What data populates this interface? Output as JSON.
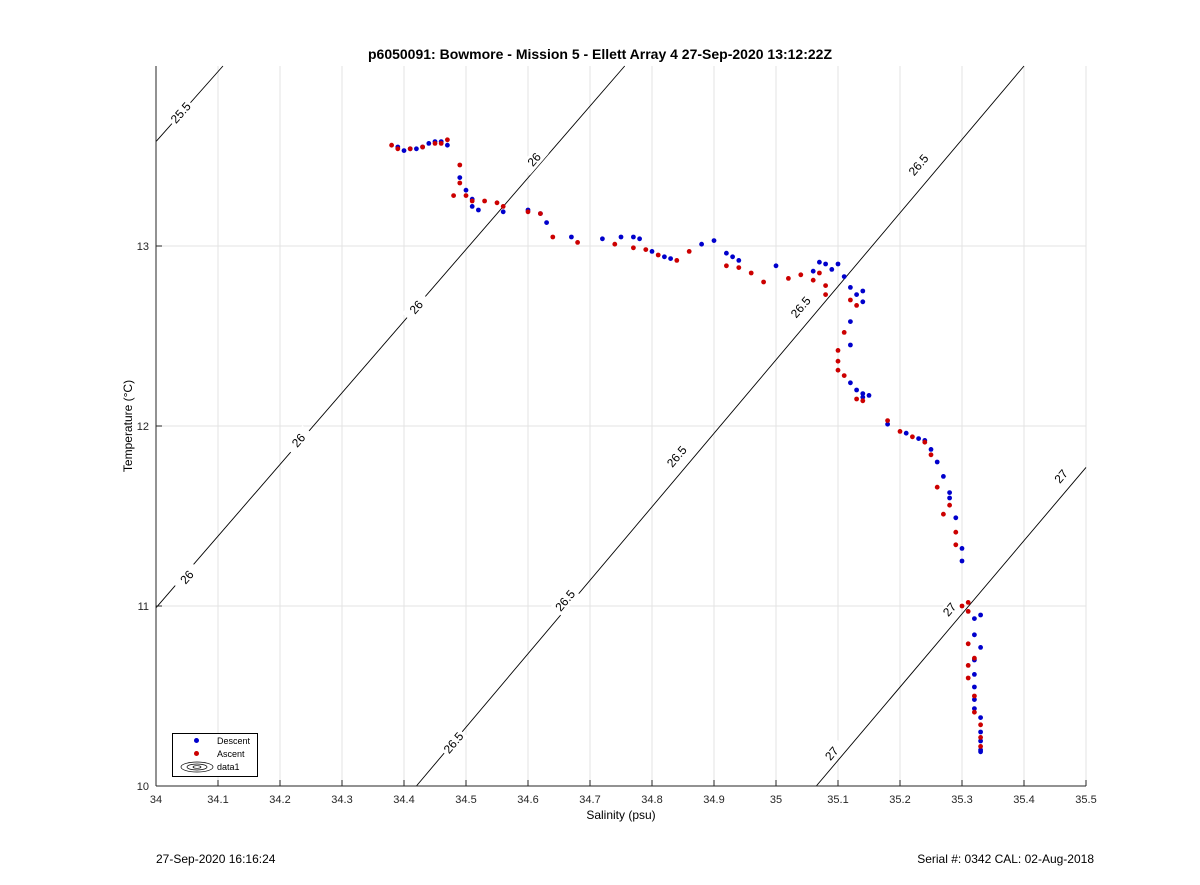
{
  "title": "p6050091: Bowmore - Mission 5 - Ellett Array 4 27-Sep-2020 13:12:22Z",
  "footer": {
    "timestamp": "27-Sep-2020 16:16:24",
    "serial": "Serial #: 0342  CAL: 02-Aug-2018"
  },
  "chart_data": {
    "type": "scatter",
    "title": "p6050091: Bowmore - Mission 5 - Ellett Array 4 27-Sep-2020 13:12:22Z",
    "xlabel": "Salinity (psu)",
    "ylabel": "Temperature (°C)",
    "xlim": [
      34,
      35.5
    ],
    "ylim": [
      10,
      14
    ],
    "xticks": [
      "34",
      "34.1",
      "34.2",
      "34.3",
      "34.4",
      "34.5",
      "34.6",
      "34.7",
      "34.8",
      "34.9",
      "35",
      "35.1",
      "35.2",
      "35.3",
      "35.4",
      "35.5"
    ],
    "yticks": [
      "10",
      "11",
      "12",
      "13"
    ],
    "grid": true,
    "legend_position": "bottom-left",
    "legend": [
      "Descent",
      "Ascent",
      "data1"
    ],
    "colors": {
      "Descent": "#0000cc",
      "Ascent": "#cc0000",
      "contour": "#000000"
    },
    "contours": [
      {
        "label": "25.5",
        "points": [
          [
            34.0,
            13.58
          ],
          [
            34.108,
            14.0
          ]
        ],
        "labels": [
          [
            34.04,
            13.74
          ]
        ]
      },
      {
        "label": "26",
        "points": [
          [
            34.0,
            10.99
          ],
          [
            34.756,
            14.0
          ]
        ],
        "labels": [
          [
            34.05,
            11.16
          ],
          [
            34.23,
            11.92
          ],
          [
            34.42,
            12.66
          ],
          [
            34.61,
            13.48
          ]
        ]
      },
      {
        "label": "26.5",
        "points": [
          [
            34.42,
            10.0
          ],
          [
            35.4,
            14.0
          ]
        ],
        "labels": [
          [
            34.48,
            10.24
          ],
          [
            34.66,
            11.03
          ],
          [
            34.84,
            11.83
          ],
          [
            35.04,
            12.66
          ],
          [
            35.23,
            13.45
          ]
        ]
      },
      {
        "label": "27",
        "points": [
          [
            35.065,
            10.0
          ],
          [
            35.5,
            11.77
          ]
        ],
        "labels": [
          [
            35.09,
            10.18
          ],
          [
            35.28,
            10.98
          ],
          [
            35.46,
            11.72
          ]
        ]
      }
    ],
    "series": [
      {
        "name": "Descent",
        "points": [
          [
            34.39,
            13.55
          ],
          [
            34.4,
            13.53
          ],
          [
            34.41,
            13.54
          ],
          [
            34.42,
            13.54
          ],
          [
            34.43,
            13.55
          ],
          [
            34.44,
            13.57
          ],
          [
            34.45,
            13.58
          ],
          [
            34.46,
            13.58
          ],
          [
            34.47,
            13.56
          ],
          [
            34.49,
            13.38
          ],
          [
            34.5,
            13.31
          ],
          [
            34.51,
            13.26
          ],
          [
            34.51,
            13.22
          ],
          [
            34.52,
            13.2
          ],
          [
            34.56,
            13.19
          ],
          [
            34.6,
            13.2
          ],
          [
            34.62,
            13.18
          ],
          [
            34.63,
            13.13
          ],
          [
            34.67,
            13.05
          ],
          [
            34.72,
            13.04
          ],
          [
            34.75,
            13.05
          ],
          [
            34.77,
            13.05
          ],
          [
            34.78,
            13.04
          ],
          [
            34.8,
            12.97
          ],
          [
            34.82,
            12.94
          ],
          [
            34.83,
            12.93
          ],
          [
            34.88,
            13.01
          ],
          [
            34.9,
            13.03
          ],
          [
            34.92,
            12.96
          ],
          [
            34.93,
            12.94
          ],
          [
            34.94,
            12.92
          ],
          [
            35.0,
            12.89
          ],
          [
            35.06,
            12.86
          ],
          [
            35.07,
            12.91
          ],
          [
            35.08,
            12.9
          ],
          [
            35.09,
            12.87
          ],
          [
            35.1,
            12.9
          ],
          [
            35.11,
            12.83
          ],
          [
            35.12,
            12.77
          ],
          [
            35.12,
            12.58
          ],
          [
            35.12,
            12.45
          ],
          [
            35.13,
            12.73
          ],
          [
            35.14,
            12.75
          ],
          [
            35.14,
            12.69
          ],
          [
            35.12,
            12.24
          ],
          [
            35.13,
            12.2
          ],
          [
            35.14,
            12.18
          ],
          [
            35.15,
            12.17
          ],
          [
            35.14,
            12.16
          ],
          [
            35.18,
            12.01
          ],
          [
            35.21,
            11.96
          ],
          [
            35.23,
            11.93
          ],
          [
            35.24,
            11.92
          ],
          [
            35.25,
            11.87
          ],
          [
            35.26,
            11.8
          ],
          [
            35.27,
            11.72
          ],
          [
            35.28,
            11.63
          ],
          [
            35.28,
            11.6
          ],
          [
            35.29,
            11.49
          ],
          [
            35.3,
            11.32
          ],
          [
            35.3,
            11.25
          ],
          [
            35.32,
            10.93
          ],
          [
            35.33,
            10.95
          ],
          [
            35.32,
            10.84
          ],
          [
            35.33,
            10.77
          ],
          [
            35.32,
            10.7
          ],
          [
            35.32,
            10.62
          ],
          [
            35.32,
            10.55
          ],
          [
            35.32,
            10.48
          ],
          [
            35.32,
            10.43
          ],
          [
            35.33,
            10.38
          ],
          [
            35.33,
            10.3
          ],
          [
            35.33,
            10.25
          ],
          [
            35.33,
            10.2
          ],
          [
            35.33,
            10.19
          ]
        ]
      },
      {
        "name": "Ascent",
        "points": [
          [
            34.38,
            13.56
          ],
          [
            34.39,
            13.54
          ],
          [
            34.41,
            13.54
          ],
          [
            34.43,
            13.55
          ],
          [
            34.45,
            13.57
          ],
          [
            34.46,
            13.57
          ],
          [
            34.47,
            13.59
          ],
          [
            34.49,
            13.45
          ],
          [
            34.49,
            13.35
          ],
          [
            34.5,
            13.28
          ],
          [
            34.48,
            13.28
          ],
          [
            34.51,
            13.25
          ],
          [
            34.53,
            13.25
          ],
          [
            34.55,
            13.24
          ],
          [
            34.56,
            13.22
          ],
          [
            34.6,
            13.19
          ],
          [
            34.62,
            13.18
          ],
          [
            34.64,
            13.05
          ],
          [
            34.68,
            13.02
          ],
          [
            34.74,
            13.01
          ],
          [
            34.77,
            12.99
          ],
          [
            34.79,
            12.98
          ],
          [
            34.81,
            12.95
          ],
          [
            34.84,
            12.92
          ],
          [
            34.86,
            12.97
          ],
          [
            34.92,
            12.89
          ],
          [
            34.94,
            12.88
          ],
          [
            34.96,
            12.85
          ],
          [
            34.98,
            12.8
          ],
          [
            35.02,
            12.82
          ],
          [
            35.04,
            12.84
          ],
          [
            35.06,
            12.81
          ],
          [
            35.07,
            12.85
          ],
          [
            35.08,
            12.78
          ],
          [
            35.08,
            12.73
          ],
          [
            35.1,
            12.42
          ],
          [
            35.1,
            12.36
          ],
          [
            35.1,
            12.31
          ],
          [
            35.11,
            12.28
          ],
          [
            35.11,
            12.52
          ],
          [
            35.12,
            12.7
          ],
          [
            35.13,
            12.67
          ],
          [
            35.13,
            12.15
          ],
          [
            35.14,
            12.14
          ],
          [
            35.18,
            12.03
          ],
          [
            35.2,
            11.97
          ],
          [
            35.22,
            11.94
          ],
          [
            35.24,
            11.91
          ],
          [
            35.25,
            11.84
          ],
          [
            35.26,
            11.66
          ],
          [
            35.27,
            11.51
          ],
          [
            35.28,
            11.56
          ],
          [
            35.29,
            11.41
          ],
          [
            35.29,
            11.34
          ],
          [
            35.3,
            11.0
          ],
          [
            35.31,
            11.02
          ],
          [
            35.31,
            10.97
          ],
          [
            35.31,
            10.79
          ],
          [
            35.32,
            10.71
          ],
          [
            35.31,
            10.67
          ],
          [
            35.31,
            10.6
          ],
          [
            35.32,
            10.5
          ],
          [
            35.32,
            10.41
          ],
          [
            35.33,
            10.34
          ],
          [
            35.33,
            10.27
          ],
          [
            35.33,
            10.22
          ]
        ]
      }
    ]
  }
}
